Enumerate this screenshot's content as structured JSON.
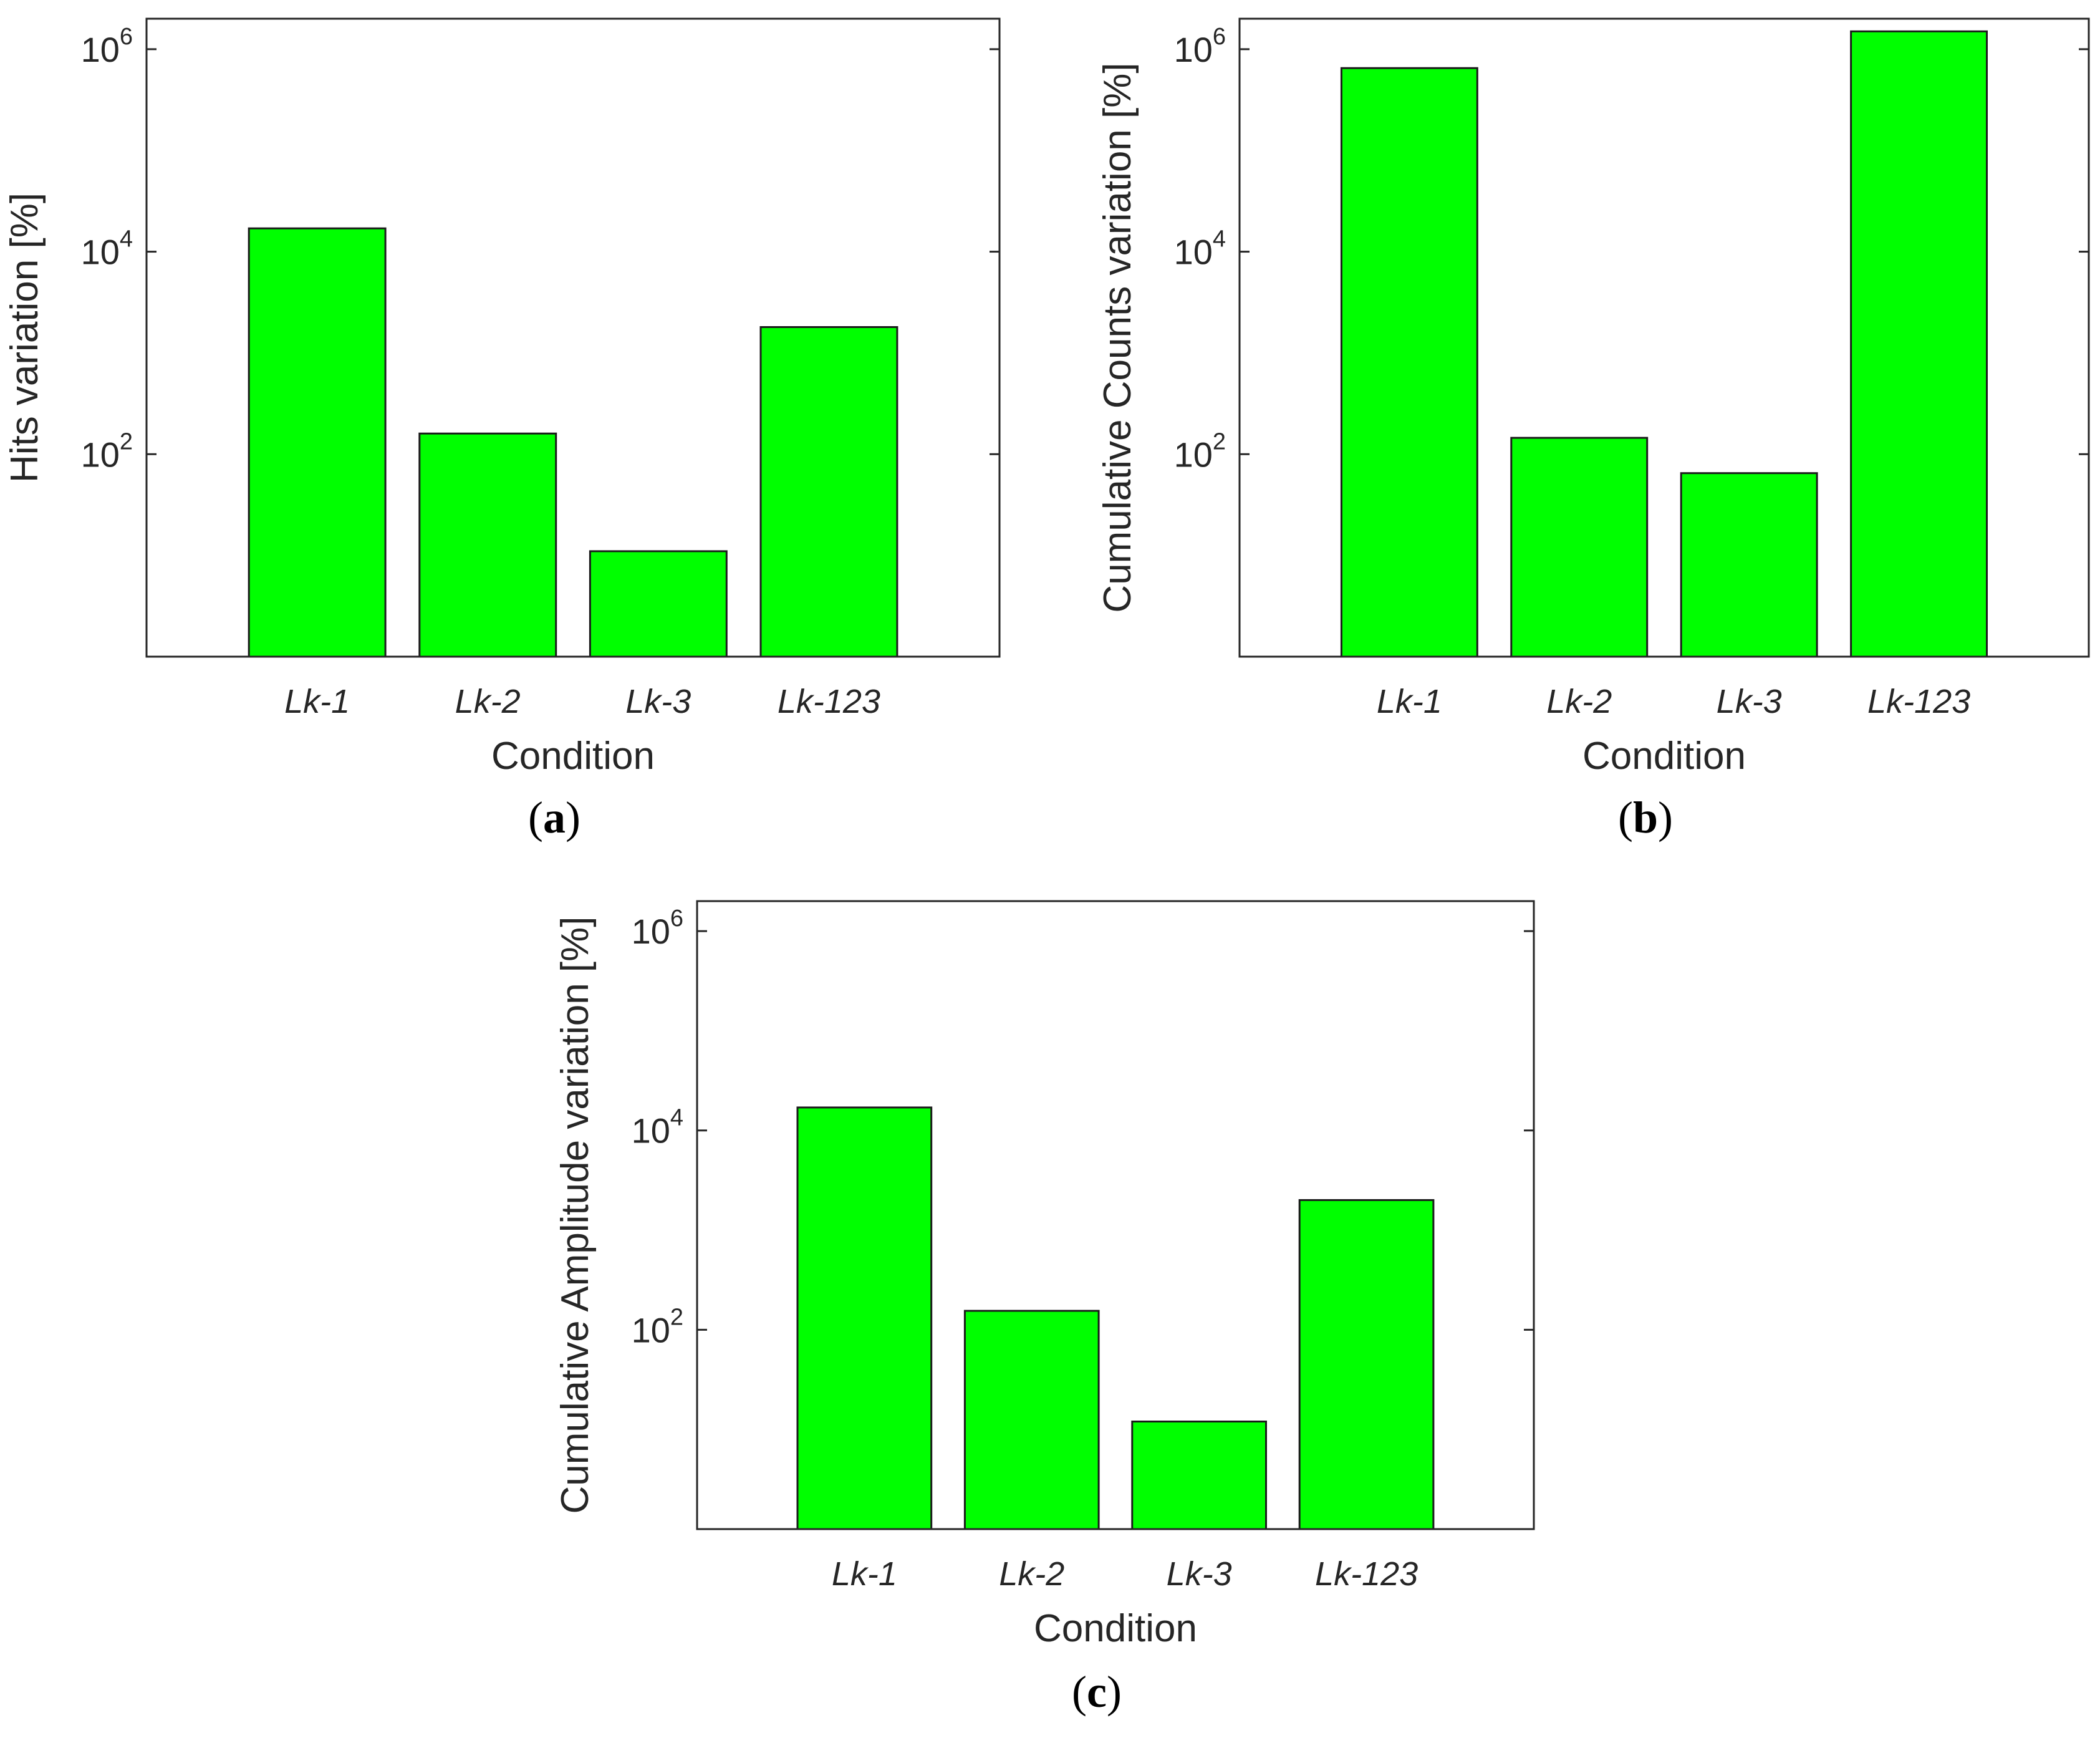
{
  "colors": {
    "bar": "#00ff00",
    "bar_edge": "#1a1a1a",
    "axis": "#262626",
    "text": "#262626"
  },
  "chart_data": [
    {
      "type": "bar",
      "panel_label": "(a)",
      "panel_letter": "a",
      "categories": [
        "Lk-1",
        "Lk-2",
        "Lk-3",
        "Lk-123"
      ],
      "values": [
        17000,
        160,
        11,
        1800
      ],
      "yscale": "log",
      "ylim": [
        1,
        2000000
      ],
      "yticks": [
        100,
        10000,
        1000000
      ],
      "ytick_labels": [
        {
          "base": "10",
          "exp": "2"
        },
        {
          "base": "10",
          "exp": "4"
        },
        {
          "base": "10",
          "exp": "6"
        }
      ],
      "title": "",
      "xlabel": "Condition",
      "ylabel": "Hits variation [%]",
      "grid": false
    },
    {
      "type": "bar",
      "panel_label": "(b)",
      "panel_letter": "b",
      "categories": [
        "Lk-1",
        "Lk-2",
        "Lk-3",
        "Lk-123"
      ],
      "values": [
        650000,
        145,
        65,
        1500000
      ],
      "yscale": "log",
      "ylim": [
        1,
        2000000
      ],
      "yticks": [
        100,
        10000,
        1000000
      ],
      "ytick_labels": [
        {
          "base": "10",
          "exp": "2"
        },
        {
          "base": "10",
          "exp": "4"
        },
        {
          "base": "10",
          "exp": "6"
        }
      ],
      "title": "",
      "xlabel": "Condition",
      "ylabel": "Cumulative Counts variation [%]",
      "grid": false
    },
    {
      "type": "bar",
      "panel_label": "(c)",
      "panel_letter": "c",
      "categories": [
        "Lk-1",
        "Lk-2",
        "Lk-3",
        "Lk-123"
      ],
      "values": [
        17000,
        155,
        12,
        2000
      ],
      "yscale": "log",
      "ylim": [
        1,
        2000000
      ],
      "yticks": [
        100,
        10000,
        1000000
      ],
      "ytick_labels": [
        {
          "base": "10",
          "exp": "2"
        },
        {
          "base": "10",
          "exp": "4"
        },
        {
          "base": "10",
          "exp": "6"
        }
      ],
      "title": "",
      "xlabel": "Condition",
      "ylabel": "Cumulative Amplitude variation [%]",
      "grid": false
    }
  ]
}
